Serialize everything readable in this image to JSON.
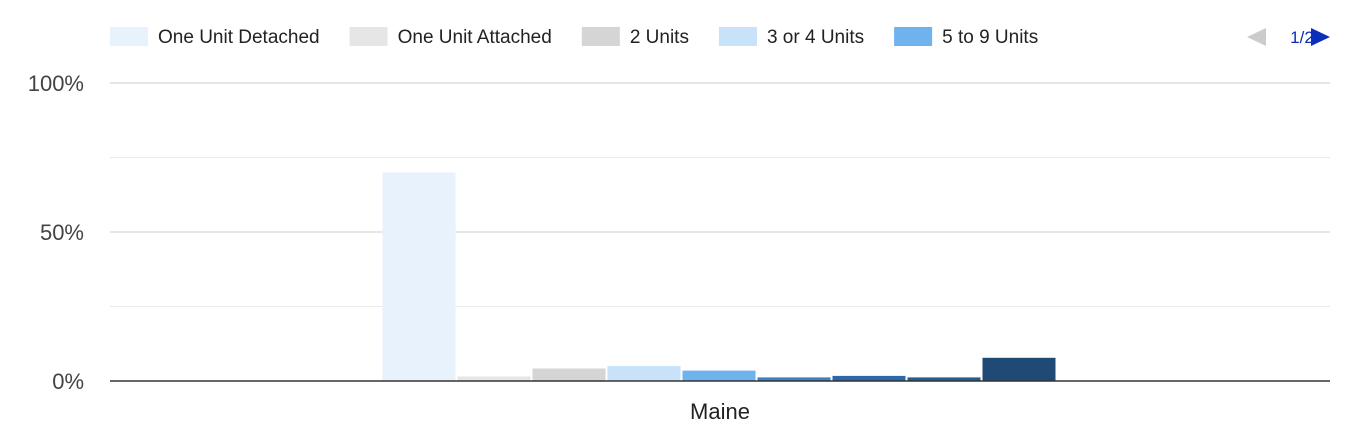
{
  "chart_data": {
    "type": "bar",
    "categories": [
      "Maine"
    ],
    "series": [
      {
        "name": "One Unit Detached",
        "color": "#e8f2fc",
        "values": [
          70
        ]
      },
      {
        "name": "One Unit Attached",
        "color": "#e6e6e6",
        "values": [
          1.5
        ]
      },
      {
        "name": "2 Units",
        "color": "#d5d5d5",
        "values": [
          4.2
        ]
      },
      {
        "name": "3 or 4 Units",
        "color": "#c7e2f9",
        "values": [
          5
        ]
      },
      {
        "name": "5 to 9 Units",
        "color": "#6fb3ee",
        "values": [
          3.5
        ]
      },
      {
        "name": "",
        "color": "#3d7fbf",
        "values": [
          1.2
        ]
      },
      {
        "name": "",
        "color": "#2a68a8",
        "values": [
          1.7
        ]
      },
      {
        "name": "",
        "color": "#235d97",
        "values": [
          1.2
        ]
      },
      {
        "name": "",
        "color": "#1f4a75",
        "values": [
          7.8
        ]
      }
    ],
    "legend_visible_count": 5,
    "y_ticks": [
      "0%",
      "50%",
      "100%"
    ],
    "ylim": [
      0,
      100
    ],
    "grid": true,
    "legend_position": "top",
    "pager": {
      "label": "1/2",
      "prev_icon": "triangle-left-icon",
      "next_icon": "triangle-right-icon",
      "prev_color": "#cccccc",
      "next_color": "#0b2fb8"
    }
  }
}
